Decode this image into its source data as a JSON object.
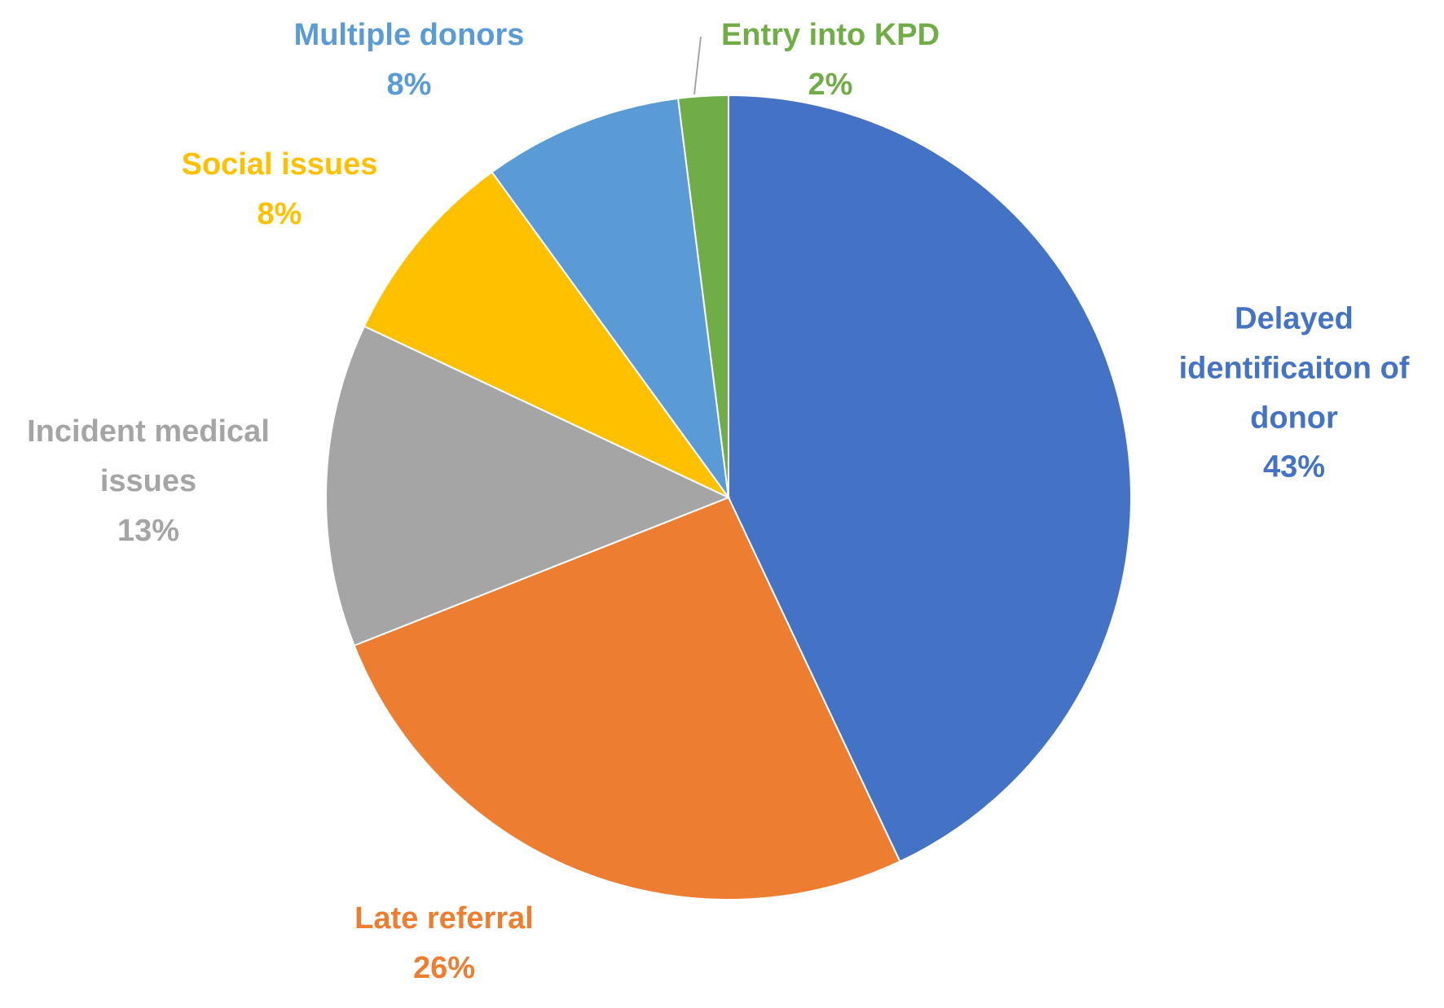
{
  "chart_data": {
    "type": "pie",
    "categories": [
      "Delayed identificaiton of donor",
      "Late referral",
      "Incident medical issues",
      "Social issues",
      "Multiple donors",
      "Entry into KPD"
    ],
    "values": [
      43,
      26,
      13,
      8,
      8,
      2
    ],
    "value_labels": [
      "43%",
      "26%",
      "13%",
      "8%",
      "8%",
      "2%"
    ],
    "colors": [
      "#4472c4",
      "#ed7d31",
      "#a5a5a5",
      "#ffc000",
      "#5b9bd5",
      "#70ad47"
    ]
  }
}
